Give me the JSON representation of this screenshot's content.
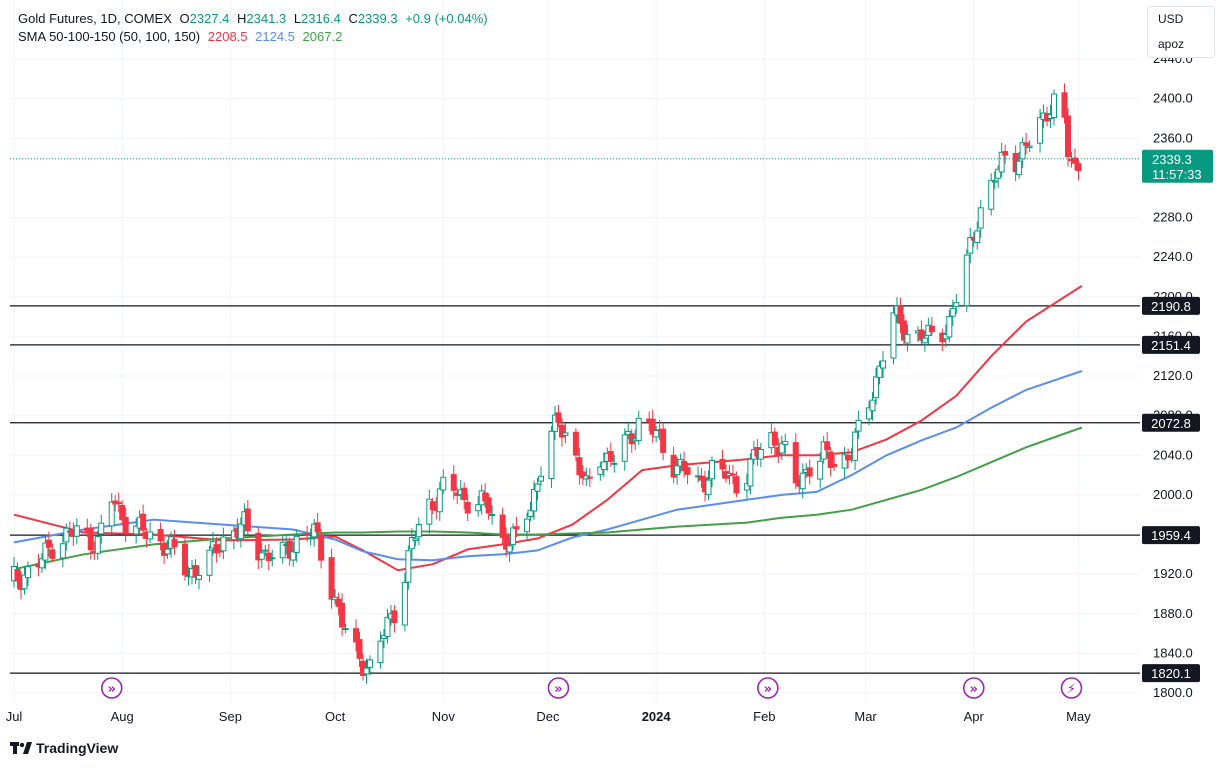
{
  "legend": {
    "symbol": "Gold Futures, 1D, COMEX",
    "o_label": "O",
    "o_value": "2327.4",
    "h_label": "H",
    "h_value": "2341.3",
    "l_label": "L",
    "l_value": "2316.4",
    "c_label": "C",
    "c_value": "2339.3",
    "change": "+0.9 (+0.04%)",
    "sma_label": "SMA 50-100-150 (50, 100, 150)",
    "sma50": "2208.5",
    "sma100": "2124.5",
    "sma150": "2067.2"
  },
  "units": {
    "currency": "USD",
    "unit": "apoz"
  },
  "footer": {
    "brand": "TradingView"
  },
  "colors": {
    "up": "#089981",
    "down": "#f23645",
    "sma50": "#f23645",
    "sma100": "#5b8def",
    "sma150": "#43a047",
    "event": "#9c27b0"
  },
  "chart_data": {
    "type": "candlestick",
    "title": "Gold Futures, 1D, COMEX",
    "ylim": [
      1790,
      2460
    ],
    "y_ticks": [
      1800,
      1840,
      1880,
      1920,
      2000,
      2040,
      2080,
      2120,
      2160,
      2200,
      2240,
      2280,
      2360,
      2400,
      2440
    ],
    "y_tick_labels": [
      "1800.0",
      "1840.0",
      "1880.0",
      "1920.0",
      "2000.0",
      "2040.0",
      "2080.0",
      "2120.0",
      "2160.0",
      "2200.0",
      "2240.0",
      "2280.0",
      "2360.0",
      "2400.0",
      "2440.0"
    ],
    "x_ticks": [
      {
        "label": "Jul",
        "day": 0
      },
      {
        "label": "Aug",
        "day": 31
      },
      {
        "label": "Sep",
        "day": 62
      },
      {
        "label": "Oct",
        "day": 92
      },
      {
        "label": "Nov",
        "day": 123
      },
      {
        "label": "Dec",
        "day": 153
      },
      {
        "label": "2024",
        "day": 184
      },
      {
        "label": "Feb",
        "day": 215
      },
      {
        "label": "Mar",
        "day": 244
      },
      {
        "label": "Apr",
        "day": 275
      },
      {
        "label": "May",
        "day": 305
      }
    ],
    "x_bold": [
      "2024"
    ],
    "levels": [
      {
        "value": 2190.8,
        "label": "2190.8"
      },
      {
        "value": 2151.4,
        "label": "2151.4"
      },
      {
        "value": 2072.8,
        "label": "2072.8"
      },
      {
        "value": 1959.4,
        "label": "1959.4"
      },
      {
        "value": 1820.1,
        "label": "1820.1"
      }
    ],
    "last_price": {
      "value": 2339.3,
      "label": "2339.3",
      "countdown": "11:57:33"
    },
    "event_days": [
      28,
      156,
      216,
      275,
      303
    ],
    "event_glyphs": [
      "»",
      "»",
      "»",
      "»",
      "⚡"
    ],
    "anchors": [
      [
        0,
        1915
      ],
      [
        6,
        1925
      ],
      [
        12,
        1955
      ],
      [
        18,
        1962
      ],
      [
        24,
        1952
      ],
      [
        28,
        1995
      ],
      [
        32,
        1975
      ],
      [
        38,
        1960
      ],
      [
        44,
        1950
      ],
      [
        50,
        1920
      ],
      [
        56,
        1935
      ],
      [
        62,
        1965
      ],
      [
        66,
        1968
      ],
      [
        70,
        1945
      ],
      [
        76,
        1935
      ],
      [
        82,
        1958
      ],
      [
        86,
        1962
      ],
      [
        90,
        1920
      ],
      [
        94,
        1870
      ],
      [
        98,
        1840
      ],
      [
        102,
        1825
      ],
      [
        106,
        1860
      ],
      [
        110,
        1892
      ],
      [
        114,
        1950
      ],
      [
        118,
        1985
      ],
      [
        124,
        2010
      ],
      [
        130,
        1995
      ],
      [
        136,
        1988
      ],
      [
        140,
        1955
      ],
      [
        144,
        1955
      ],
      [
        148,
        1990
      ],
      [
        152,
        2040
      ],
      [
        156,
        2075
      ],
      [
        160,
        2050
      ],
      [
        164,
        2005
      ],
      [
        168,
        2040
      ],
      [
        172,
        2035
      ],
      [
        176,
        2055
      ],
      [
        180,
        2080
      ],
      [
        184,
        2060
      ],
      [
        188,
        2035
      ],
      [
        192,
        2025
      ],
      [
        196,
        2010
      ],
      [
        200,
        2025
      ],
      [
        204,
        2020
      ],
      [
        208,
        2010
      ],
      [
        212,
        2035
      ],
      [
        216,
        2060
      ],
      [
        220,
        2050
      ],
      [
        224,
        2010
      ],
      [
        228,
        2030
      ],
      [
        232,
        2040
      ],
      [
        236,
        2030
      ],
      [
        240,
        2045
      ],
      [
        244,
        2080
      ],
      [
        248,
        2130
      ],
      [
        252,
        2180
      ],
      [
        256,
        2165
      ],
      [
        260,
        2160
      ],
      [
        264,
        2158
      ],
      [
        268,
        2175
      ],
      [
        272,
        2220
      ],
      [
        276,
        2280
      ],
      [
        280,
        2310
      ],
      [
        284,
        2345
      ],
      [
        288,
        2340
      ],
      [
        292,
        2360
      ],
      [
        296,
        2390
      ],
      [
        300,
        2400
      ],
      [
        302,
        2345
      ],
      [
        304,
        2330
      ],
      [
        306,
        2339.3
      ]
    ],
    "series": [
      {
        "name": "SMA 50",
        "value": "2208.5",
        "color": "#f23645",
        "points": [
          [
            0,
            1980
          ],
          [
            20,
            1962
          ],
          [
            40,
            1960
          ],
          [
            60,
            1954
          ],
          [
            80,
            1955
          ],
          [
            92,
            1958
          ],
          [
            100,
            1944
          ],
          [
            110,
            1924
          ],
          [
            120,
            1930
          ],
          [
            130,
            1945
          ],
          [
            140,
            1950
          ],
          [
            150,
            1956
          ],
          [
            160,
            1970
          ],
          [
            170,
            1995
          ],
          [
            180,
            2025
          ],
          [
            190,
            2030
          ],
          [
            200,
            2033
          ],
          [
            210,
            2036
          ],
          [
            220,
            2040
          ],
          [
            230,
            2040
          ],
          [
            240,
            2043
          ],
          [
            250,
            2056
          ],
          [
            260,
            2075
          ],
          [
            270,
            2100
          ],
          [
            280,
            2140
          ],
          [
            290,
            2175
          ],
          [
            306,
            2211
          ]
        ]
      },
      {
        "name": "SMA 100",
        "value": "2124.5",
        "color": "#5b8def",
        "points": [
          [
            0,
            1952
          ],
          [
            20,
            1965
          ],
          [
            40,
            1975
          ],
          [
            60,
            1970
          ],
          [
            80,
            1965
          ],
          [
            92,
            1955
          ],
          [
            100,
            1943
          ],
          [
            110,
            1935
          ],
          [
            120,
            1934
          ],
          [
            130,
            1938
          ],
          [
            140,
            1940
          ],
          [
            150,
            1944
          ],
          [
            160,
            1957
          ],
          [
            170,
            1965
          ],
          [
            180,
            1975
          ],
          [
            190,
            1985
          ],
          [
            200,
            1990
          ],
          [
            210,
            1995
          ],
          [
            220,
            2000
          ],
          [
            230,
            2003
          ],
          [
            240,
            2020
          ],
          [
            250,
            2040
          ],
          [
            260,
            2055
          ],
          [
            270,
            2068
          ],
          [
            280,
            2088
          ],
          [
            290,
            2106
          ],
          [
            306,
            2125
          ]
        ]
      },
      {
        "name": "SMA 150",
        "value": "2067.2",
        "color": "#43a047",
        "points": [
          [
            0,
            1925
          ],
          [
            20,
            1940
          ],
          [
            40,
            1950
          ],
          [
            60,
            1956
          ],
          [
            80,
            1960
          ],
          [
            92,
            1962
          ],
          [
            100,
            1962
          ],
          [
            110,
            1963
          ],
          [
            120,
            1963
          ],
          [
            130,
            1962
          ],
          [
            140,
            1960
          ],
          [
            150,
            1960
          ],
          [
            160,
            1961
          ],
          [
            170,
            1962
          ],
          [
            180,
            1965
          ],
          [
            190,
            1968
          ],
          [
            200,
            1970
          ],
          [
            210,
            1972
          ],
          [
            220,
            1977
          ],
          [
            230,
            1980
          ],
          [
            240,
            1985
          ],
          [
            250,
            1995
          ],
          [
            260,
            2005
          ],
          [
            270,
            2018
          ],
          [
            280,
            2033
          ],
          [
            290,
            2048
          ],
          [
            306,
            2068
          ]
        ]
      }
    ]
  }
}
